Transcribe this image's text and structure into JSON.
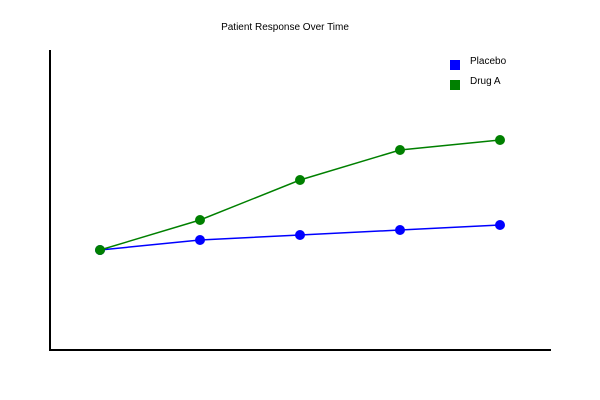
{
  "chart_data": {
    "type": "line",
    "title": "Patient Response Over Time",
    "xlabel": "",
    "ylabel": "",
    "x": [
      0,
      1,
      2,
      3,
      4
    ],
    "xlim": [
      -0.5,
      4.5
    ],
    "ylim": [
      0,
      300
    ],
    "grid": false,
    "legend_position": "top-right",
    "series": [
      {
        "name": "Placebo",
        "color": "#0000ff",
        "values": [
          100,
          110,
          115,
          120,
          125
        ]
      },
      {
        "name": "Drug A",
        "color": "#008000",
        "values": [
          100,
          130,
          170,
          200,
          210
        ]
      }
    ]
  }
}
